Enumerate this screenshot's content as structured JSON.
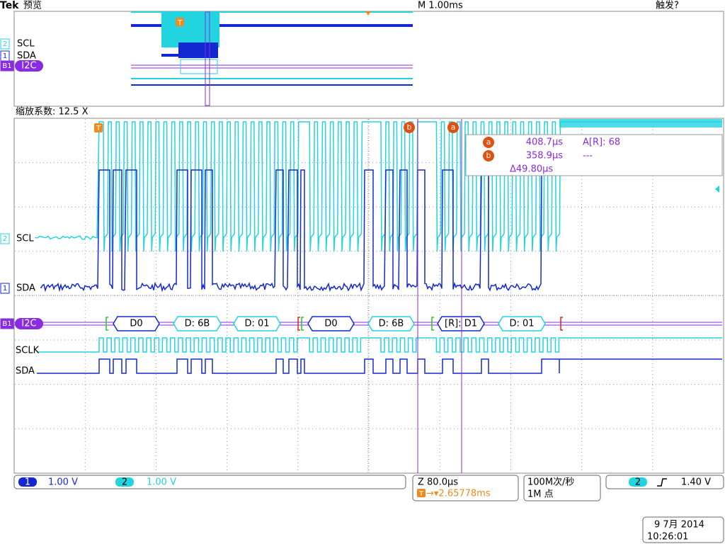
{
  "header": {
    "brand": "Tek",
    "mode": "预览",
    "timebase": "M 1.00ms",
    "trigger_status": "触发?"
  },
  "overview": {
    "channels": [
      {
        "num": "2",
        "name": "SCL"
      },
      {
        "num": "1",
        "name": "SDA"
      },
      {
        "num": "B1",
        "name": "I2C"
      }
    ],
    "trigger_marker": "T"
  },
  "zoom": {
    "factor": "缩放系数: 12.5 X",
    "trigger_marker": "T",
    "cursor_b": "b",
    "cursor_a": "a",
    "channels": [
      {
        "num": "2",
        "name": "SCL"
      },
      {
        "num": "1",
        "name": "SDA"
      },
      {
        "num": "B1",
        "name": "I2C"
      }
    ],
    "readout": {
      "a_label": "a",
      "a_time": "408.7µs",
      "a_value": "A[R]: 68",
      "b_label": "b",
      "b_time": "358.9µs",
      "b_value": "---",
      "delta": "Δ49.80µs"
    },
    "bus_packets": [
      "D0",
      "D: 6B",
      "D: 01",
      "D0",
      "D: 6B",
      "[R]: D1",
      "D: 01"
    ],
    "digital": [
      "SCLK",
      "SDA"
    ]
  },
  "status_bar": {
    "ch1_num": "1",
    "ch1_scale": "1.00 V",
    "ch2_num": "2",
    "ch2_scale": "1.00 V",
    "zoom_scale": "Z 80.0µs",
    "trigger_pos_icon": "T",
    "trigger_pos": "→▾2.65778ms",
    "sample_rate": "100M次/秒",
    "record_length": "1M 点",
    "trig_src": "2",
    "trig_level": "1.40 V",
    "date": "9 7月  2014",
    "time": "10:26:01"
  }
}
